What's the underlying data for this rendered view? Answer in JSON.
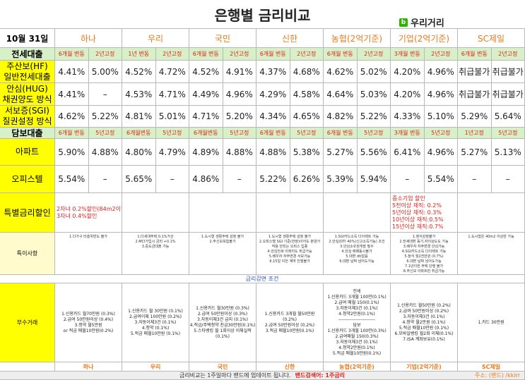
{
  "header": {
    "title": "은행별 금리비교",
    "logo": "우리거리"
  },
  "table": {
    "date": "10월 31일",
    "banks": [
      "하나",
      "우리",
      "국민",
      "신한",
      "농협(2억기준)",
      "기업(2억기준)",
      "SC제일"
    ],
    "jeonse": {
      "label": "전세대출",
      "subheaders": [
        "6개월 변동",
        "2년고정",
        "1년 변동",
        "2년고정",
        "6개월 변동",
        "2년고정",
        "6개월 변동",
        "2년고정",
        "6개월 변동",
        "2년고정",
        "3개월 변동",
        "2년고정",
        "6개월 변동",
        "2년고정"
      ],
      "rows": [
        {
          "label": [
            "주산보(HF)",
            "일반전세대출"
          ],
          "cells": [
            "4.41%",
            "5.00%",
            "4.52%",
            "4.72%",
            "4.52%",
            "4.91%",
            "4.37%",
            "4.68%",
            "4.62%",
            "5.02%",
            "4.20%",
            "4.96%",
            "취급불가",
            "취급불가"
          ]
        },
        {
          "label": [
            "안심(HUG)",
            "채권양도 방식"
          ],
          "cells": [
            "4.41%",
            "–",
            "4.53%",
            "4.71%",
            "4.49%",
            "4.96%",
            "4.29%",
            "4.58%",
            "4.64%",
            "5.03%",
            "4.20%",
            "4.96%",
            "취급불가",
            "취급불가"
          ]
        },
        {
          "label": [
            "서보증(SGI)",
            "질권설정 방식"
          ],
          "cells": [
            "4.62%",
            "5.22%",
            "4.81%",
            "5.01%",
            "4.71%",
            "5.20%",
            "4.34%",
            "4.65%",
            "4.82%",
            "5.22%",
            "4.33%",
            "5.10%",
            "5.29%",
            "5.64%"
          ]
        }
      ]
    },
    "mortgage": {
      "label": "담보대출",
      "subheaders": [
        "6개월 변동",
        "5년고정",
        "6개월변동",
        "5년고정",
        "6개월변동",
        "5년고정",
        "6개월 변동",
        "5년고정",
        "6개월 변동",
        "5년고정",
        "3개월 변동",
        "5년고정",
        "1년고정",
        "5년고정"
      ],
      "rows": [
        {
          "label": [
            "아파트"
          ],
          "cells": [
            "5.90%",
            "4.88%",
            "4.80%",
            "4.79%",
            "4.89%",
            "4.88%",
            "4.88%",
            "5.38%",
            "5.27%",
            "5.56%",
            "6.41%",
            "4.96%",
            "5.27%",
            "5.13%"
          ]
        },
        {
          "label": [
            "오피스텔"
          ],
          "cells": [
            "5.54%",
            "–",
            "5.65%",
            "–",
            "4.86%",
            "–",
            "5.22%",
            "6.26%",
            "5.39%",
            "5.94%",
            "–",
            "5.54%",
            "–",
            "–"
          ]
        }
      ]
    },
    "discount": {
      "label": "특별금리할인",
      "cells": [
        [
          "2자녀 0.2%할인(84m2이하)",
          "3자녀 0.4%할인"
        ],
        [],
        [],
        [],
        [],
        [
          "중소기업 할인",
          "5천이상 재직: 0.2%",
          "5년이상 재직: 0.3%",
          "10년이상 재직:0.5%",
          "15년이상 재직:0.7%"
        ],
        []
      ]
    },
    "notes": {
      "label": "특이사항",
      "cells": [
        [
          "1.다가구 타층위반도 불가"
        ],
        [
          "1.다세대주택 0.1%가산",
          "2.MCI가입시 금리 +0.1%",
          "3.중도금대출 가능"
        ],
        [
          "1.도시형 생활주택 감정 불가",
          "2.주신보보험불가"
        ],
        [
          "1.도시형 생활주택 감정 불가",
          "2.오피스텔 SGI 기준(한정)이어도 분양가",
          "적용 안되는 오피스 입종",
          "4.안심전세 이래지도 취급가능",
          "5.배우자 자주변경 서보가능",
          "6.15일 이전 계약 진행불가"
        ],
        [
          "1.SGI카드소득 다이렉트 가능",
          "2.안심(DTI 40%)신고소득가능) 조건",
          "3.안심소유권개발 필수",
          "4.안심 매매동시불가",
          "5.대환 dti없음",
          "6.대환 날짜 넘어도가능"
        ],
        [
          "1.정식감정불가",
          "2.전세대환 동기,자이상도도 가능",
          "3.배우자 자주변경 안심가능",
          "4.SGI카드소득 다이렉트 가능",
          "5.정식 월2천만원 (0.7%)",
          "6.대환 날짜 넘어도가능",
          "7.1년이한 주택 단행 불가",
          "8.주신보 아파트만 취급가능"
        ],
        [
          "1.도시형은 40m2 이상만 가능"
        ]
      ]
    },
    "condition_title": "금리감면 조건",
    "extra": {
      "label": "부수거래",
      "cells": [
        [
          "1.신용카드 월70만원 (0.3%)",
          "2.급여 50만원이상 (0.4%)",
          "3.청약 월5만원",
          "or 적금 매월10만원(0.2%)"
        ],
        [
          "1.신용카드 월 30만원 (0.1%)",
          "2.급여이체 100만원 (0.2%)",
          "3.자동이체3건 (0.1%)",
          "4.청약 (0.1%)",
          "5.적금 매월10만원 (0.1%)"
        ],
        [
          "1.신용카드 월30만원 (0.3%)",
          "2.급여 50만원이상 (0.3%)",
          "3.자동이체3건 급지 (0.1%)",
          "4.적금/주택청약 친금30만원(0.1%)",
          "5.스타뱅킹 월 1회이상 이체실적",
          "(0.1%)"
        ],
        [
          "1.신용카드 3개월 월50만원",
          "(0.2%)",
          "2.급여 50만원이상 (0.2%)",
          "3.적금 매월10만원(0.1%)"
        ],
        [
          "전세",
          "1.신용카드 3개월 100만(0.1%)",
          "2.급여 매월 150(0.1%)",
          "3.자동이체3건 (0.1%)",
          "4.청약2만원(0.1%)",
          "------------------------",
          "담보",
          "1.신용카드 3개월 100만(0.3%)",
          "2.급여매월 150(0.3%)",
          "3.자동이체3건 (0.1%)",
          "4.청약2만원(0.1%)",
          "5.적금 매월10만원(0.1%)"
        ],
        [
          "1.신용카드 월50만원 (0.2%)",
          "2.급여 50만원이상 (0.2%)",
          "3.자동이체3건 (0.1%)",
          "4.청약 월2만원 (0.1%)",
          "5.적금 매월10만원 (0.1%)",
          "6.모바일뱅킹 월2회 이체(0.1%)",
          "7.ISA 계좌보유(0.1%)"
        ],
        [
          "1.카드 30만원"
        ]
      ]
    }
  },
  "footer": {
    "notice": "금리비교는 1주일마다 밴드에 업데이트 됩니다.",
    "search": "밴드검색어: 1주금리",
    "address": "주소: (밴드) /kkirr"
  }
}
